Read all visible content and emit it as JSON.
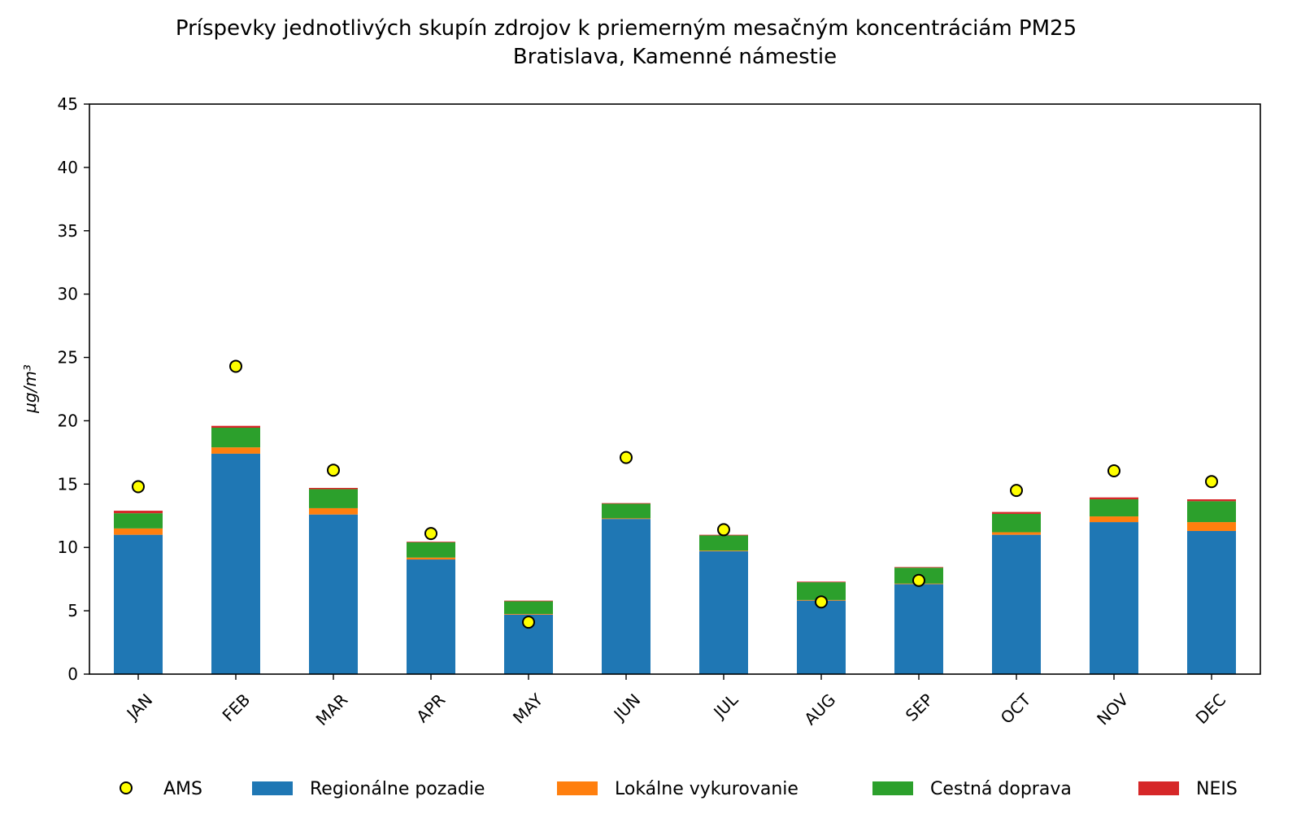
{
  "chart_data": {
    "type": "bar",
    "stacked": true,
    "title": "Príspevky jednotlivých skupín zdrojov k priemerným mesačným koncentráciám PM25",
    "subtitle": "Bratislava, Kamenné námestie",
    "xlabel": "",
    "ylabel": "µg/m³",
    "ylim": [
      0,
      45
    ],
    "yticks": [
      0,
      5,
      10,
      15,
      20,
      25,
      30,
      35,
      40,
      45
    ],
    "categories": [
      "JAN",
      "FEB",
      "MAR",
      "APR",
      "MAY",
      "JUN",
      "JUL",
      "AUG",
      "SEP",
      "OCT",
      "NOV",
      "DEC"
    ],
    "series": [
      {
        "name": "Regionálne pozadie",
        "color": "#1f77b4",
        "values": [
          11.0,
          17.4,
          12.6,
          9.05,
          4.7,
          12.25,
          9.7,
          5.8,
          7.1,
          11.0,
          12.0,
          11.3
        ]
      },
      {
        "name": "Lokálne vykurovanie",
        "color": "#ff7f0e",
        "values": [
          0.5,
          0.5,
          0.5,
          0.15,
          0.05,
          0.05,
          0.05,
          0.05,
          0.05,
          0.2,
          0.45,
          0.7
        ]
      },
      {
        "name": "Cestná doprava",
        "color": "#2ca02c",
        "values": [
          1.2,
          1.55,
          1.5,
          1.2,
          1.0,
          1.15,
          1.2,
          1.4,
          1.25,
          1.45,
          1.35,
          1.65
        ]
      },
      {
        "name": "NEIS",
        "color": "#d62728",
        "values": [
          0.2,
          0.15,
          0.1,
          0.05,
          0.05,
          0.05,
          0.05,
          0.05,
          0.05,
          0.15,
          0.15,
          0.15
        ]
      }
    ],
    "points": {
      "name": "AMS",
      "color": "#ffff00",
      "values": [
        14.8,
        24.3,
        16.1,
        11.1,
        4.1,
        17.1,
        11.4,
        5.7,
        7.4,
        14.5,
        16.05,
        15.2
      ]
    },
    "legend": {
      "placement": "bottom",
      "labels": [
        "AMS",
        "Regionálne pozadie",
        "Lokálne vykurovanie",
        "Cestná doprava",
        "NEIS"
      ]
    }
  }
}
